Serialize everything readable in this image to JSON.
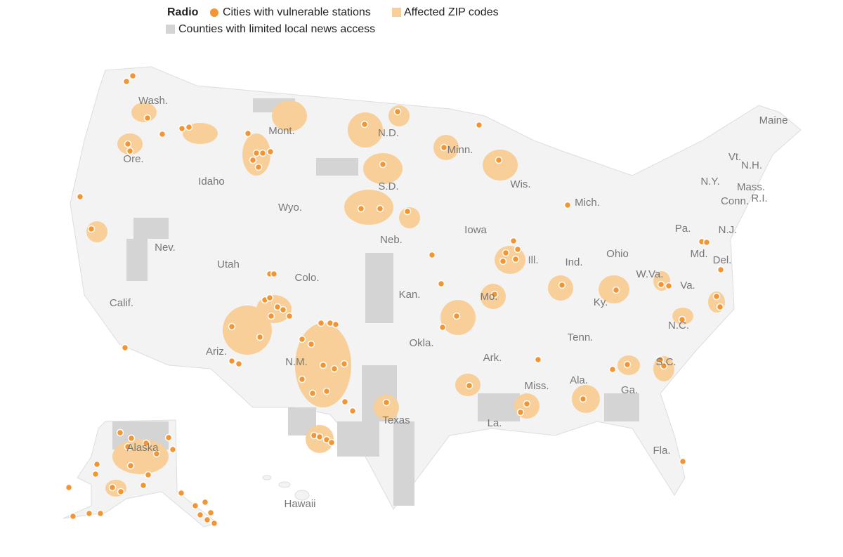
{
  "legend": {
    "title": "Radio",
    "items": [
      "Cities with vulnerable stations",
      "Affected ZIP codes",
      "Counties with limited local news access"
    ]
  },
  "labels": [
    "Wash.",
    "Ore.",
    "Calif.",
    "Idaho",
    "Nev.",
    "Mont.",
    "Wyo.",
    "Utah",
    "Colo.",
    "Ariz.",
    "N.M.",
    "N.D.",
    "S.D.",
    "Neb.",
    "Kan.",
    "Okla.",
    "Texas",
    "Minn.",
    "Iowa",
    "Mo.",
    "Ark.",
    "La.",
    "Wis.",
    "Ill.",
    "Mich.",
    "Ind.",
    "Ohio",
    "Ky.",
    "Tenn.",
    "Miss.",
    "Ala.",
    "Ga.",
    "Fla.",
    "S.C.",
    "N.C.",
    "Va.",
    "W.Va.",
    "Pa.",
    "N.Y.",
    "Md.",
    "Del.",
    "N.J.",
    "Conn.",
    "R.I.",
    "Mass.",
    "N.H.",
    "Vt.",
    "Maine",
    "Alaska",
    "Hawaii"
  ]
}
